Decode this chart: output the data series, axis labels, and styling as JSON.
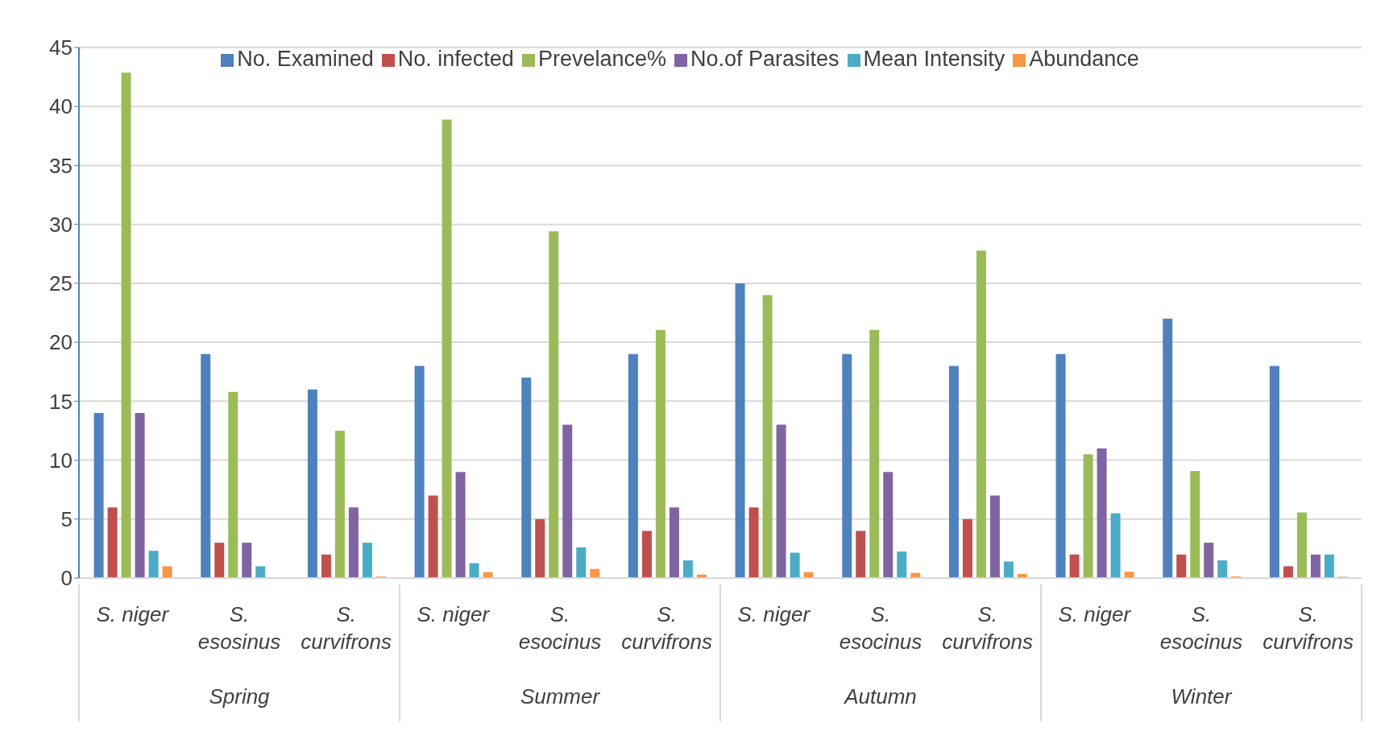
{
  "chart_data": {
    "type": "bar",
    "categories": [
      "S. niger",
      "S. esosinus",
      "S. curvifrons",
      "S. niger",
      "S. esocinus",
      "S. curvifrons",
      "S. niger",
      "S. esocinus",
      "S. curvifrons",
      "S. niger",
      "S. esocinus",
      "S. curvifrons"
    ],
    "annotations": [
      "Spring",
      "Summer",
      "Autumn",
      "Winter"
    ],
    "series": [
      {
        "name": "No. Examined",
        "color": "#4f81bd",
        "values": [
          14,
          19,
          16,
          18,
          17,
          19,
          25,
          19,
          18,
          19,
          22,
          18
        ]
      },
      {
        "name": "No. infected",
        "color": "#c0504d",
        "values": [
          6,
          3,
          2,
          7,
          5,
          4,
          6,
          4,
          5,
          2,
          2,
          1
        ]
      },
      {
        "name": "Prevelance%",
        "color": "#9bbb59",
        "values": [
          42.86,
          15.79,
          12.5,
          38.89,
          29.41,
          21.05,
          24,
          21.05,
          27.78,
          10.5,
          9.09,
          5.56
        ]
      },
      {
        "name": "No.of Parasites",
        "color": "#8064a2",
        "values": [
          14,
          3,
          6,
          9,
          13,
          6,
          13,
          9,
          7,
          11,
          3,
          2
        ]
      },
      {
        "name": "Mean Intensity",
        "color": "#4bacc6",
        "values": [
          2.31,
          1,
          3,
          1.26,
          2.6,
          1.5,
          2.15,
          2.25,
          1.4,
          5.5,
          1.5,
          2
        ]
      },
      {
        "name": "Abundance",
        "color": "#f79646",
        "values": [
          1,
          0,
          0.13,
          0.5,
          0.77,
          0.3,
          0.5,
          0.44,
          0.35,
          0.54,
          0.14,
          0.11
        ]
      }
    ],
    "ylim": [
      0,
      45
    ],
    "yticks": [
      0,
      5,
      10,
      15,
      20,
      25,
      30,
      35,
      40,
      45
    ],
    "grid": "y",
    "legend": "top"
  }
}
